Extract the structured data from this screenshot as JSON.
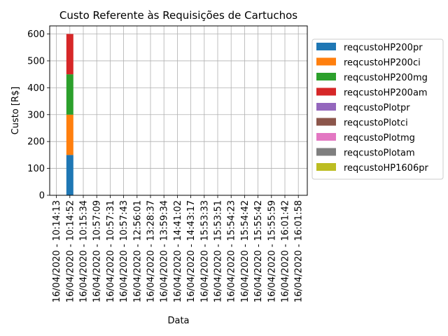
{
  "chart_data": {
    "type": "bar",
    "stacked": true,
    "title": "Custo Referente às Requisições de Cartuchos",
    "xlabel": "Data",
    "ylabel": "Custo [R$]",
    "ylim": [
      0,
      630
    ],
    "yticks": [
      0,
      100,
      200,
      300,
      400,
      500,
      600
    ],
    "grid": true,
    "legend_position": "outside-right",
    "categories": [
      "16/04/2020 - 10:14:13",
      "16/04/2020 - 10:14:52",
      "16/04/2020 - 10:15:34",
      "16/04/2020 - 10:57:09",
      "16/04/2020 - 10:57:31",
      "16/04/2020 - 10:57:43",
      "16/04/2020 - 12:56:01",
      "16/04/2020 - 13:28:37",
      "16/04/2020 - 13:59:34",
      "16/04/2020 - 14:41:02",
      "16/04/2020 - 14:43:17",
      "16/04/2020 - 15:53:33",
      "16/04/2020 - 15:53:51",
      "16/04/2020 - 15:54:23",
      "16/04/2020 - 15:54:42",
      "16/04/2020 - 15:55:42",
      "16/04/2020 - 15:55:59",
      "16/04/2020 - 16:01:42",
      "16/04/2020 - 16:01:58"
    ],
    "series": [
      {
        "name": "reqcustoHP200pr",
        "color": "#1f77b4",
        "values": [
          0,
          150,
          0,
          0,
          0,
          0,
          0,
          0,
          0,
          0,
          0,
          0,
          0,
          0,
          0,
          0,
          0,
          0,
          0
        ]
      },
      {
        "name": "reqcustoHP200ci",
        "color": "#ff7f0e",
        "values": [
          0,
          150,
          0,
          0,
          0,
          0,
          0,
          0,
          0,
          0,
          0,
          0,
          0,
          0,
          0,
          0,
          0,
          0,
          0
        ]
      },
      {
        "name": "reqcustoHP200mg",
        "color": "#2ca02c",
        "values": [
          0,
          150,
          0,
          0,
          0,
          0,
          0,
          0,
          0,
          0,
          0,
          0,
          0,
          0,
          0,
          0,
          0,
          0,
          0
        ]
      },
      {
        "name": "reqcustoHP200am",
        "color": "#d62728",
        "values": [
          0,
          150,
          0,
          0,
          0,
          0,
          0,
          0,
          0,
          0,
          0,
          0,
          0,
          0,
          0,
          0,
          0,
          0,
          0
        ]
      },
      {
        "name": "reqcustoPlotpr",
        "color": "#9467bd",
        "values": [
          0,
          0,
          0,
          0,
          0,
          0,
          0,
          0,
          0,
          0,
          0,
          0,
          0,
          0,
          0,
          0,
          0,
          0,
          0
        ]
      },
      {
        "name": "reqcustoPlotci",
        "color": "#8c564b",
        "values": [
          0,
          0,
          0,
          0,
          0,
          0,
          0,
          0,
          0,
          0,
          0,
          0,
          0,
          0,
          0,
          0,
          0,
          0,
          0
        ]
      },
      {
        "name": "reqcustoPlotmg",
        "color": "#e377c2",
        "values": [
          0,
          0,
          0,
          0,
          0,
          0,
          0,
          0,
          0,
          0,
          0,
          0,
          0,
          0,
          0,
          0,
          0,
          0,
          0
        ]
      },
      {
        "name": "reqcustoPlotam",
        "color": "#7f7f7f",
        "values": [
          0,
          0,
          0,
          0,
          0,
          0,
          0,
          0,
          0,
          0,
          0,
          0,
          0,
          0,
          0,
          0,
          0,
          0,
          0
        ]
      },
      {
        "name": "reqcustoHP1606pr",
        "color": "#bcbd22",
        "values": [
          0,
          0,
          0,
          0,
          0,
          0,
          0,
          0,
          0,
          0,
          0,
          0,
          0,
          0,
          0,
          0,
          0,
          0,
          0
        ]
      }
    ]
  }
}
